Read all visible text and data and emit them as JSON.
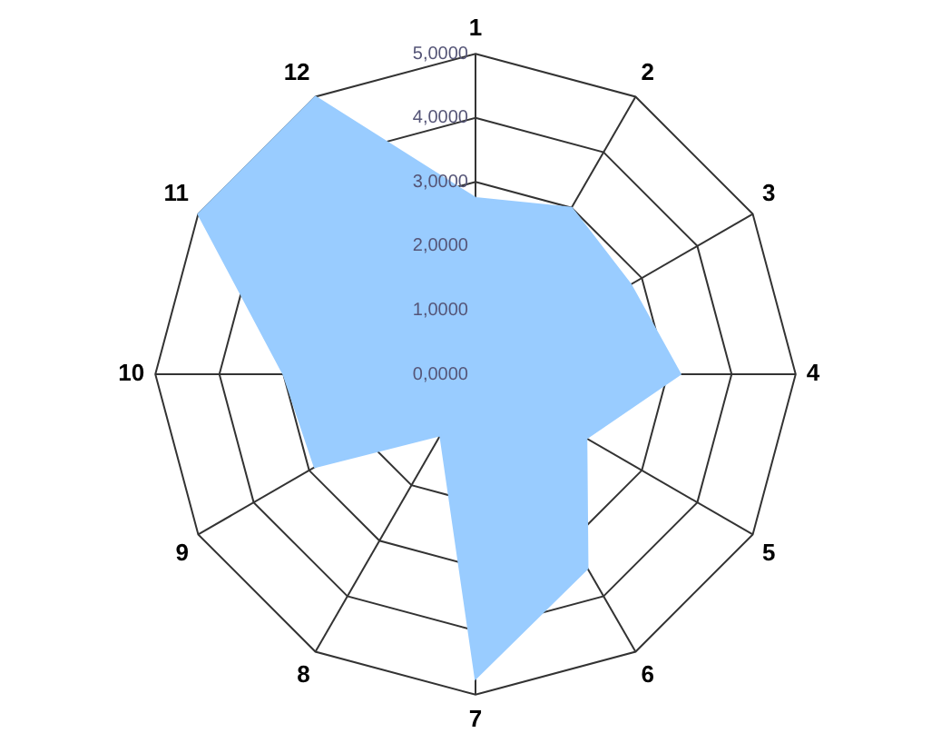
{
  "chart_data": {
    "type": "radar",
    "categories": [
      "1",
      "2",
      "3",
      "4",
      "5",
      "6",
      "7",
      "8",
      "9",
      "10",
      "11",
      "12"
    ],
    "series": [
      {
        "color": "#99ccff",
        "values": [
          2.75,
          3.0,
          2.8,
          3.2,
          2.0,
          3.5,
          4.75,
          1.1,
          2.9,
          3.0,
          5.0,
          5.0
        ]
      }
    ],
    "ylim": [
      0,
      5
    ],
    "yticks": [
      {
        "value": 0,
        "label": "0,0000"
      },
      {
        "value": 1,
        "label": "1,0000"
      },
      {
        "value": 2,
        "label": "2,0000"
      },
      {
        "value": 3,
        "label": "3,0000"
      },
      {
        "value": 4,
        "label": "4,0000"
      },
      {
        "value": 5,
        "label": "5,0000"
      }
    ],
    "grid": true,
    "legend": false,
    "marker": "none"
  }
}
